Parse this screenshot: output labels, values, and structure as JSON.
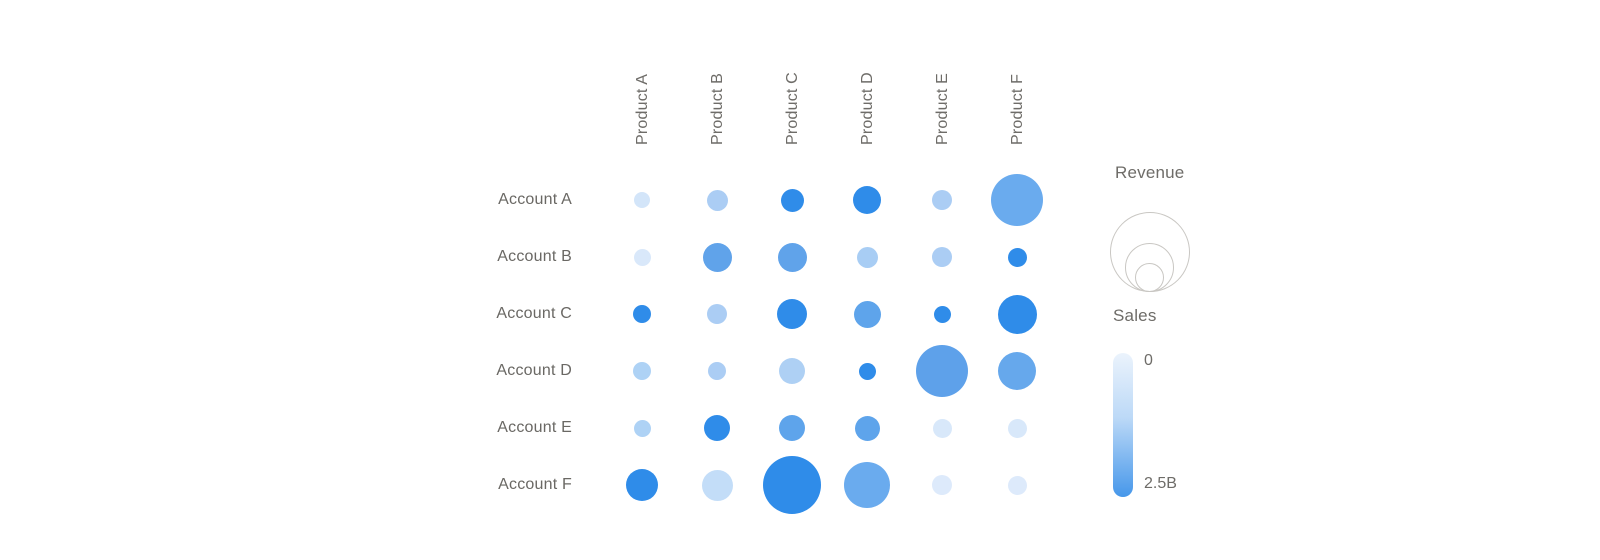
{
  "page": {
    "background": "#ffffff"
  },
  "legend": {
    "revenue": {
      "title": "Revenue",
      "ring_color": "#c9c7c3"
    },
    "sales": {
      "title": "Sales",
      "min_label": "0",
      "max_label": "2.5B",
      "gradient_top": "#ebf3fc",
      "gradient_bottom": "#4697ea"
    }
  },
  "chart_data": {
    "type": "bubble",
    "title": "",
    "x_categories": [
      "Product A",
      "Product B",
      "Product C",
      "Product D",
      "Product E",
      "Product F"
    ],
    "y_categories": [
      "Account A",
      "Account B",
      "Account C",
      "Account D",
      "Account E",
      "Account F"
    ],
    "size_metric": "Revenue",
    "color_metric": "Sales",
    "color_scale": {
      "min": 0,
      "max_label": "2.5B",
      "min_label": "0",
      "low_color": "#e9f2fc",
      "high_color": "#2f8ce9"
    },
    "grid": false,
    "legend_position": "right",
    "points": [
      {
        "account": "Account A",
        "product": "Product A",
        "radius_px": 8,
        "color": "#d3e5f9",
        "sales_est_b": 0.25
      },
      {
        "account": "Account A",
        "product": "Product B",
        "radius_px": 10.5,
        "color": "#abcdf4",
        "sales_est_b": 0.8
      },
      {
        "account": "Account A",
        "product": "Product C",
        "radius_px": 11.5,
        "color": "#2f8ce9",
        "sales_est_b": 2.4
      },
      {
        "account": "Account A",
        "product": "Product D",
        "radius_px": 14,
        "color": "#2f8ce9",
        "sales_est_b": 2.4
      },
      {
        "account": "Account A",
        "product": "Product E",
        "radius_px": 10,
        "color": "#abcdf4",
        "sales_est_b": 0.8
      },
      {
        "account": "Account A",
        "product": "Product F",
        "radius_px": 26,
        "color": "#6aabee",
        "sales_est_b": 1.5
      },
      {
        "account": "Account B",
        "product": "Product A",
        "radius_px": 8.5,
        "color": "#d9e8fa",
        "sales_est_b": 0.2
      },
      {
        "account": "Account B",
        "product": "Product B",
        "radius_px": 14.5,
        "color": "#60a3ea",
        "sales_est_b": 1.7
      },
      {
        "account": "Account B",
        "product": "Product C",
        "radius_px": 14.5,
        "color": "#60a3ea",
        "sales_est_b": 1.7
      },
      {
        "account": "Account B",
        "product": "Product D",
        "radius_px": 10.5,
        "color": "#a8cdf4",
        "sales_est_b": 0.8
      },
      {
        "account": "Account B",
        "product": "Product E",
        "radius_px": 10,
        "color": "#abcdf4",
        "sales_est_b": 0.8
      },
      {
        "account": "Account B",
        "product": "Product F",
        "radius_px": 9.5,
        "color": "#2f8ce9",
        "sales_est_b": 2.4
      },
      {
        "account": "Account C",
        "product": "Product A",
        "radius_px": 9,
        "color": "#2f8ce9",
        "sales_est_b": 2.4
      },
      {
        "account": "Account C",
        "product": "Product B",
        "radius_px": 10,
        "color": "#abcdf4",
        "sales_est_b": 0.8
      },
      {
        "account": "Account C",
        "product": "Product C",
        "radius_px": 15,
        "color": "#2f8ce9",
        "sales_est_b": 2.4
      },
      {
        "account": "Account C",
        "product": "Product D",
        "radius_px": 13.5,
        "color": "#5ea4eb",
        "sales_est_b": 1.7
      },
      {
        "account": "Account C",
        "product": "Product E",
        "radius_px": 8.5,
        "color": "#2f8ce9",
        "sales_est_b": 2.4
      },
      {
        "account": "Account C",
        "product": "Product F",
        "radius_px": 19.5,
        "color": "#2f8ce9",
        "sales_est_b": 2.4
      },
      {
        "account": "Account D",
        "product": "Product A",
        "radius_px": 9,
        "color": "#aed2f5",
        "sales_est_b": 0.75
      },
      {
        "account": "Account D",
        "product": "Product B",
        "radius_px": 9,
        "color": "#abcdf4",
        "sales_est_b": 0.8
      },
      {
        "account": "Account D",
        "product": "Product C",
        "radius_px": 13,
        "color": "#aed0f4",
        "sales_est_b": 0.75
      },
      {
        "account": "Account D",
        "product": "Product D",
        "radius_px": 8.5,
        "color": "#2f8ce9",
        "sales_est_b": 2.4
      },
      {
        "account": "Account D",
        "product": "Product E",
        "radius_px": 26,
        "color": "#5ea1ea",
        "sales_est_b": 1.75
      },
      {
        "account": "Account D",
        "product": "Product F",
        "radius_px": 19,
        "color": "#66a8ec",
        "sales_est_b": 1.55
      },
      {
        "account": "Account E",
        "product": "Product A",
        "radius_px": 8.5,
        "color": "#aed2f5",
        "sales_est_b": 0.75
      },
      {
        "account": "Account E",
        "product": "Product B",
        "radius_px": 13,
        "color": "#2f8ce9",
        "sales_est_b": 2.4
      },
      {
        "account": "Account E",
        "product": "Product C",
        "radius_px": 13,
        "color": "#5ea4eb",
        "sales_est_b": 1.7
      },
      {
        "account": "Account E",
        "product": "Product D",
        "radius_px": 12.5,
        "color": "#5ea4eb",
        "sales_est_b": 1.7
      },
      {
        "account": "Account E",
        "product": "Product E",
        "radius_px": 9.5,
        "color": "#d8e8fa",
        "sales_est_b": 0.2
      },
      {
        "account": "Account E",
        "product": "Product F",
        "radius_px": 9.5,
        "color": "#d8e8fa",
        "sales_est_b": 0.2
      },
      {
        "account": "Account F",
        "product": "Product A",
        "radius_px": 16,
        "color": "#2f8ce9",
        "sales_est_b": 2.4
      },
      {
        "account": "Account F",
        "product": "Product B",
        "radius_px": 15.5,
        "color": "#c3ddf8",
        "sales_est_b": 0.45
      },
      {
        "account": "Account F",
        "product": "Product C",
        "radius_px": 29,
        "color": "#2f8ce9",
        "sales_est_b": 2.4
      },
      {
        "account": "Account F",
        "product": "Product D",
        "radius_px": 23,
        "color": "#6aabee",
        "sales_est_b": 1.5
      },
      {
        "account": "Account F",
        "product": "Product E",
        "radius_px": 10,
        "color": "#ddeafb",
        "sales_est_b": 0.15
      },
      {
        "account": "Account F",
        "product": "Product F",
        "radius_px": 9.5,
        "color": "#ddeafb",
        "sales_est_b": 0.15
      }
    ]
  }
}
